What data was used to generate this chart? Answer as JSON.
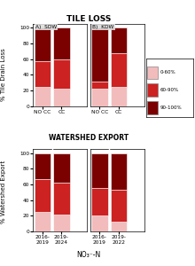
{
  "title_top": "TILE LOSS",
  "xlabel_bottom": "NO₃⁻-N",
  "ylabel_top": "% Tile Drain Loss",
  "ylabel_bottom": "% Watershed Export",
  "section_A_label": "A)  SDW",
  "section_B_label": "B)  KDW",
  "watershed_export_label": "WATERSHED EXPORT",
  "colors": {
    "light": "#F2BCBC",
    "medium": "#CC2222",
    "dark": "#7B0000"
  },
  "legend_labels": [
    "0-60%",
    "60-90%",
    "90-100%"
  ],
  "tile_loss": {
    "SDW": {
      "NO CC": [
        25,
        33,
        42
      ],
      "CC": [
        23,
        37,
        40
      ]
    },
    "KDW": {
      "NO CC": [
        22,
        10,
        68
      ],
      "CC": [
        25,
        43,
        32
      ]
    }
  },
  "watershed_export": {
    "SDW": {
      "2016-\n2019": [
        25,
        42,
        33
      ],
      "2019-\n2024": [
        22,
        40,
        38
      ]
    },
    "KDW": {
      "2016-\n2019": [
        20,
        35,
        45
      ],
      "2019-\n2022": [
        13,
        40,
        47
      ]
    }
  },
  "background_color": "#FFFFFF"
}
